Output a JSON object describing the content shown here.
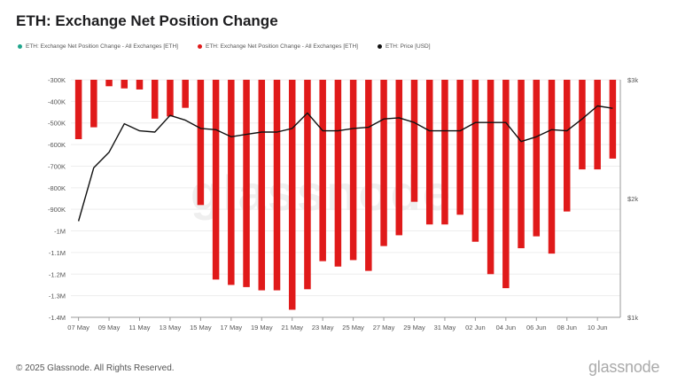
{
  "header": {
    "title": "ETH: Exchange Net Position Change"
  },
  "legend": [
    {
      "label": "ETH: Exchange Net Position Change - All Exchanges [ETH]",
      "color": "#1fa58c"
    },
    {
      "label": "ETH: Exchange Net Position Change - All Exchanges [ETH]",
      "color": "#e01a1a"
    },
    {
      "label": "ETH: Price [USD]",
      "color": "#111111"
    }
  ],
  "footer": {
    "copyright": "© 2025 Glassnode. All Rights Reserved.",
    "brand": "glassnode"
  },
  "watermark": "glassnode",
  "chart_data": {
    "type": "bar",
    "title": "ETH: Exchange Net Position Change",
    "xlabel": "",
    "ylabel": "",
    "ylim": [
      -1400000,
      -300000
    ],
    "y_ticks": [
      "-300K",
      "-400K",
      "-500K",
      "-600K",
      "-700K",
      "-800K",
      "-900K",
      "-1M",
      "-1.1M",
      "-1.2M",
      "-1.3M",
      "-1.4M"
    ],
    "y_tick_values": [
      -300000,
      -400000,
      -500000,
      -600000,
      -700000,
      -800000,
      -900000,
      -1000000,
      -1100000,
      -1200000,
      -1300000,
      -1400000
    ],
    "y2_ticks": [
      "$3k",
      "$2k",
      "$1k"
    ],
    "y2_tick_values": [
      3000,
      2000,
      1000
    ],
    "y2lim": [
      1000,
      3000
    ],
    "x_ticks": [
      "07 May",
      "09 May",
      "11 May",
      "13 May",
      "15 May",
      "17 May",
      "19 May",
      "21 May",
      "23 May",
      "25 May",
      "27 May",
      "29 May",
      "31 May",
      "02 Jun",
      "04 Jun",
      "06 Jun",
      "08 Jun",
      "10 Jun"
    ],
    "grid": true,
    "legend_position": "top-left",
    "series": [
      {
        "name": "ETH: Exchange Net Position Change - All Exchanges [ETH]",
        "axis": "left",
        "type": "bar",
        "color": "#e01a1a",
        "values": [
          -575000,
          -520000,
          -330000,
          -340000,
          -345000,
          -480000,
          -470000,
          -430000,
          -880000,
          -1225000,
          -1250000,
          -1260000,
          -1275000,
          -1275000,
          -1365000,
          -1270000,
          -1140000,
          -1165000,
          -1135000,
          -1185000,
          -1070000,
          -1020000,
          -865000,
          -970000,
          -970000,
          -925000,
          -1050000,
          -1200000,
          -1265000,
          -1080000,
          -1025000,
          -1105000,
          -910000,
          -715000,
          -715000,
          -665000
        ]
      },
      {
        "name": "ETH: Price [USD]",
        "axis": "right",
        "type": "line",
        "color": "#111111",
        "values": [
          1810,
          2260,
          2390,
          2630,
          2570,
          2560,
          2700,
          2660,
          2590,
          2580,
          2520,
          2540,
          2560,
          2560,
          2590,
          2720,
          2570,
          2570,
          2590,
          2600,
          2670,
          2680,
          2640,
          2570,
          2570,
          2570,
          2640,
          2640,
          2640,
          2480,
          2520,
          2580,
          2570,
          2670,
          2780,
          2760
        ]
      }
    ]
  }
}
